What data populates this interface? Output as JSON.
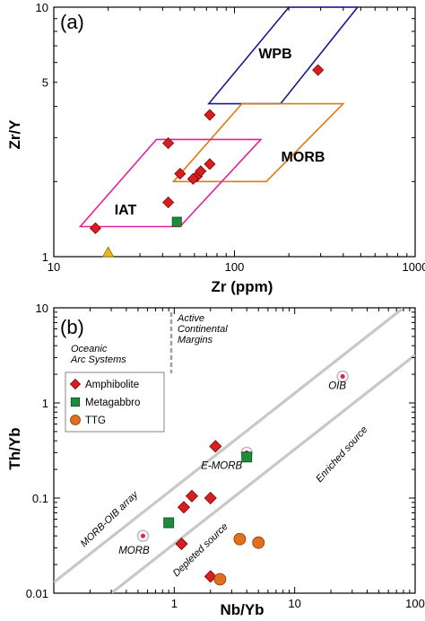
{
  "chart_data": [
    {
      "type": "scatter",
      "panel_label": "(a)",
      "xlabel": "Zr (ppm)",
      "ylabel": "Zr/Y",
      "xscale": "log",
      "yscale": "log",
      "xlim": [
        10,
        1000
      ],
      "ylim": [
        1,
        10
      ],
      "xticks": [
        "10",
        "100",
        "1000"
      ],
      "yticks": [
        "1",
        "5",
        "10"
      ],
      "regions": [
        {
          "name": "WPB",
          "color": "#1a1a8c",
          "polygon": [
            [
              72,
              4.1
            ],
            [
              200,
              10
            ],
            [
              480,
              10
            ],
            [
              180,
              4.1
            ]
          ]
        },
        {
          "name": "MORB",
          "color": "#e07a10",
          "polygon": [
            [
              46,
              2.0
            ],
            [
              110,
              4.1
            ],
            [
              400,
              4.1
            ],
            [
              150,
              2.0
            ]
          ]
        },
        {
          "name": "IAT",
          "color": "#e0209a",
          "polygon": [
            [
              14,
              1.32
            ],
            [
              37,
              2.95
            ],
            [
              140,
              2.95
            ],
            [
              50,
              1.32
            ]
          ]
        }
      ],
      "series": [
        {
          "name": "Amphibolite",
          "marker": "diamond",
          "color": "#d42020",
          "points": [
            [
              17,
              1.3
            ],
            [
              43,
              2.85
            ],
            [
              50,
              2.15
            ],
            [
              62,
              2.1
            ],
            [
              59,
              2.05
            ],
            [
              65,
              2.2
            ],
            [
              73,
              2.35
            ],
            [
              73,
              3.7
            ],
            [
              43,
              1.65
            ],
            [
              290,
              5.6
            ]
          ]
        },
        {
          "name": "Metagabbro",
          "marker": "square",
          "color": "#1e8c3a",
          "points": [
            [
              48,
              1.38
            ]
          ]
        },
        {
          "name": "",
          "marker": "triangle",
          "color": "#f0b820",
          "points": [
            [
              20,
              1.04
            ]
          ]
        }
      ]
    },
    {
      "type": "scatter",
      "panel_label": "(b)",
      "xlabel": "Nb/Yb",
      "ylabel": "Th/Yb",
      "xscale": "log",
      "yscale": "log",
      "xlim": [
        0.1,
        100
      ],
      "ylim": [
        0.01,
        10
      ],
      "xticks": [
        "1",
        "10",
        "100"
      ],
      "yticks": [
        "0.01",
        "0.1",
        "1",
        "10"
      ],
      "annotations": {
        "active_margins": [
          "Active",
          "Continental",
          "Margins"
        ],
        "oceanic_arc": [
          "Oceanic",
          "Arc Systems"
        ],
        "morb_oib_array": "MORB-OIB array",
        "depleted_source": "Depleted source",
        "enriched_source": "Enriched source"
      },
      "array_lines": [
        {
          "points": [
            [
              0.1,
              0.013
            ],
            [
              80,
              10
            ]
          ]
        },
        {
          "points": [
            [
              0.3,
              0.01
            ],
            [
              100,
              3.2
            ]
          ]
        }
      ],
      "references": [
        {
          "label": "OIB",
          "x": 25,
          "y": 1.9,
          "label_color": "#cc2030"
        },
        {
          "label": "E-MORB",
          "x": 4.0,
          "y": 0.3,
          "label_color": "#80d020"
        },
        {
          "label": "MORB",
          "x": 0.55,
          "y": 0.04,
          "label_color": "#1a1aa0"
        }
      ],
      "legend": [
        {
          "label": "Amphibolite",
          "marker": "diamond",
          "color": "#d42020"
        },
        {
          "label": "Metagabbro",
          "marker": "square",
          "color": "#1e8c3a"
        },
        {
          "label": "TTG",
          "marker": "circle",
          "color": "#e07020"
        }
      ],
      "series": [
        {
          "name": "Amphibolite",
          "marker": "diamond",
          "color": "#d42020",
          "points": [
            [
              2.2,
              0.35
            ],
            [
              1.4,
              0.105
            ],
            [
              1.2,
              0.08
            ],
            [
              2.0,
              0.1
            ],
            [
              1.15,
              0.033
            ],
            [
              2.0,
              0.015
            ]
          ]
        },
        {
          "name": "Metagabbro",
          "marker": "square",
          "color": "#1e8c3a",
          "points": [
            [
              0.9,
              0.055
            ],
            [
              4.0,
              0.27
            ]
          ]
        },
        {
          "name": "TTG",
          "marker": "circle",
          "color": "#e07020",
          "points": [
            [
              3.5,
              0.037
            ],
            [
              5.0,
              0.034
            ],
            [
              2.4,
              0.014
            ]
          ]
        }
      ]
    }
  ]
}
